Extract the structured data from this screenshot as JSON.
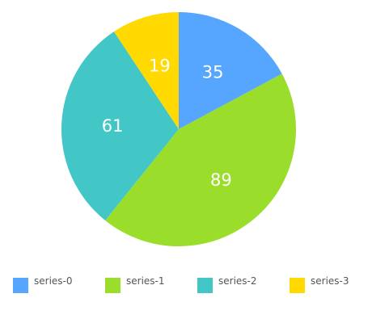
{
  "chart_data": {
    "type": "pie",
    "series": [
      {
        "name": "series-0",
        "value": 35,
        "color": "#56a5ff"
      },
      {
        "name": "series-1",
        "value": 89,
        "color": "#9ade2b"
      },
      {
        "name": "series-2",
        "value": 61,
        "color": "#43c6c6"
      },
      {
        "name": "series-3",
        "value": 19,
        "color": "#ffd900"
      }
    ],
    "data_label_color": "#ffffff",
    "legend_position": "bottom",
    "start_angle": "top",
    "direction": "clockwise"
  }
}
